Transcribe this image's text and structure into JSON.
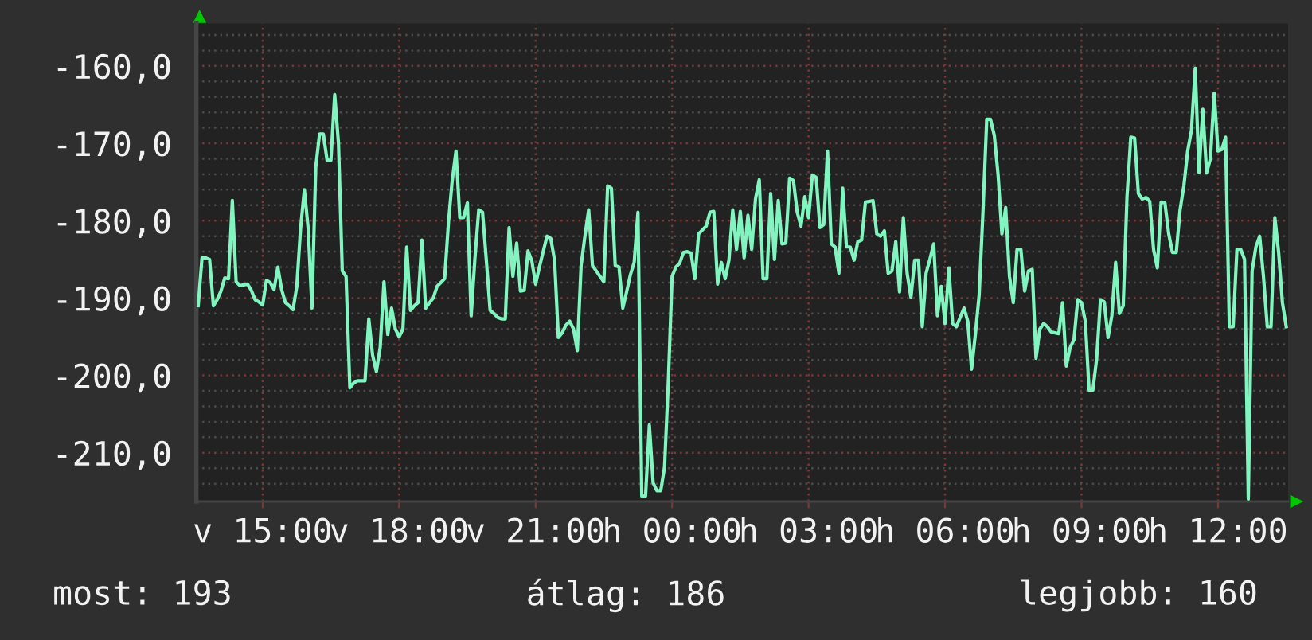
{
  "chart_data": {
    "type": "line",
    "categories": [
      null,
      null,
      null,
      null,
      null,
      null,
      null,
      null,
      null,
      null,
      null,
      null,
      null,
      null,
      null,
      null,
      null,
      "v 15:00",
      null,
      null,
      null,
      null,
      null,
      null,
      null,
      null,
      null,
      null,
      null,
      null,
      null,
      null,
      null,
      null,
      null,
      null,
      null,
      null,
      null,
      null,
      null,
      null,
      null,
      null,
      null,
      null,
      null,
      null,
      null,
      null,
      null,
      null,
      null,
      "v 18:00",
      null,
      null,
      null,
      null,
      null,
      null,
      null,
      null,
      null,
      null,
      null,
      null,
      null,
      null,
      null,
      null,
      null,
      null,
      null,
      null,
      null,
      null,
      null,
      null,
      null,
      null,
      null,
      null,
      null,
      null,
      null,
      null,
      null,
      null,
      null,
      "v 21:00",
      null,
      null,
      null,
      null,
      null,
      null,
      null,
      null,
      null,
      null,
      null,
      null,
      null,
      null,
      null,
      null,
      null,
      null,
      null,
      null,
      null,
      null,
      null,
      null,
      null,
      null,
      null,
      null,
      null,
      null,
      null,
      null,
      null,
      null,
      null,
      "h 00:00",
      null,
      null,
      null,
      null,
      null,
      null,
      null,
      null,
      null,
      null,
      null,
      null,
      null,
      null,
      null,
      null,
      null,
      null,
      null,
      null,
      null,
      null,
      null,
      null,
      null,
      null,
      null,
      null,
      null,
      null,
      null,
      null,
      null,
      null,
      null,
      "h 03:00",
      null,
      null,
      null,
      null,
      null,
      null,
      null,
      null,
      null,
      null,
      null,
      null,
      null,
      null,
      null,
      null,
      null,
      null,
      null,
      null,
      null,
      null,
      null,
      null,
      null,
      null,
      null,
      null,
      null,
      null,
      null,
      null,
      null,
      null,
      null,
      "h 06:00",
      null,
      null,
      null,
      null,
      null,
      null,
      null,
      null,
      null,
      null,
      null,
      null,
      null,
      null,
      null,
      null,
      null,
      null,
      null,
      null,
      null,
      null,
      null,
      null,
      null,
      null,
      null,
      null,
      null,
      null,
      null,
      null,
      null,
      null,
      null,
      "h 09:00",
      null,
      null,
      null,
      null,
      null,
      null,
      null,
      null,
      null,
      null,
      null,
      null,
      null,
      null,
      null,
      null,
      null,
      null,
      null,
      null,
      null,
      null,
      null,
      null,
      null,
      null,
      null,
      null,
      null,
      null,
      null,
      null,
      null,
      null,
      null,
      "h 12:00",
      null,
      null,
      null,
      null,
      null,
      null,
      null,
      null,
      null,
      null,
      null,
      null,
      null,
      null,
      null,
      null,
      null,
      null
    ],
    "series": [
      {
        "color": "#80f5c0",
        "values": [
          -191.0,
          -184.8,
          -184.8,
          -185.0,
          -191.0,
          -190.2,
          -189.1,
          -187.4,
          -187.5,
          -177.4,
          -187.9,
          -188.4,
          -188.3,
          -188.2,
          -189.0,
          -190.2,
          -190.5,
          -190.9,
          -187.7,
          -188.0,
          -188.9,
          -186.0,
          -188.9,
          -190.6,
          -191.0,
          -191.5,
          -188.5,
          -181.0,
          -176.0,
          -181.0,
          -191.3,
          -173.1,
          -168.8,
          -168.8,
          -172.2,
          -172.2,
          -163.7,
          -170.0,
          -186.5,
          -187.2,
          -201.6,
          -201.0,
          -200.7,
          -200.7,
          -200.7,
          -192.7,
          -197.4,
          -199.5,
          -196.4,
          -187.9,
          -194.7,
          -191.3,
          -194.0,
          -195.0,
          -194.0,
          -183.4,
          -191.6,
          -191.0,
          -190.6,
          -182.5,
          -191.3,
          -190.6,
          -190.0,
          -188.5,
          -188.0,
          -187.5,
          -180.3,
          -174.8,
          -171.0,
          -179.6,
          -179.6,
          -177.7,
          -192.3,
          -184.8,
          -178.6,
          -178.9,
          -185.1,
          -191.6,
          -192.0,
          -192.5,
          -192.7,
          -192.7,
          -180.9,
          -187.2,
          -182.9,
          -189.1,
          -189.0,
          -183.9,
          -185.2,
          -188.2,
          -186.0,
          -184.0,
          -182.0,
          -182.3,
          -185.1,
          -195.1,
          -194.5,
          -193.5,
          -193.0,
          -194.0,
          -196.8,
          -185.8,
          -182.0,
          -178.6,
          -185.8,
          -186.5,
          -187.2,
          -187.9,
          -175.5,
          -175.8,
          -185.8,
          -186.0,
          -191.3,
          -189.2,
          -187.0,
          -185.4,
          -178.9,
          -215.6,
          -215.6,
          -206.4,
          -213.9,
          -214.9,
          -214.9,
          -211.9,
          -200.9,
          -187.2,
          -186.0,
          -185.5,
          -184.1,
          -184.0,
          -184.2,
          -187.5,
          -181.7,
          -181.2,
          -180.7,
          -178.9,
          -178.8,
          -188.2,
          -185.4,
          -187.5,
          -185.1,
          -178.6,
          -183.7,
          -178.8,
          -184.8,
          -179.3,
          -183.7,
          -177.2,
          -174.7,
          -187.5,
          -187.5,
          -176.5,
          -185.0,
          -177.4,
          -183.0,
          -182.9,
          -174.5,
          -174.8,
          -178.9,
          -180.7,
          -176.9,
          -179.6,
          -174.1,
          -174.4,
          -180.9,
          -180.5,
          -171.0,
          -183.0,
          -183.4,
          -186.8,
          -175.8,
          -183.4,
          -183.4,
          -185.1,
          -182.7,
          -182.5,
          -177.6,
          -177.5,
          -177.4,
          -181.7,
          -182.0,
          -181.3,
          -186.8,
          -186.5,
          -182.7,
          -189.2,
          -179.6,
          -186.8,
          -189.9,
          -185.1,
          -185.1,
          -193.7,
          -186.8,
          -185.0,
          -183.0,
          -192.3,
          -188.5,
          -193.3,
          -186.1,
          -193.3,
          -193.7,
          -192.5,
          -191.3,
          -193.0,
          -199.2,
          -194.7,
          -189.6,
          -178.9,
          -166.9,
          -166.9,
          -169.0,
          -174.1,
          -181.7,
          -178.3,
          -187.2,
          -190.6,
          -183.7,
          -183.7,
          -189.1,
          -186.5,
          -186.3,
          -197.8,
          -194.0,
          -193.3,
          -193.7,
          -194.4,
          -194.5,
          -194.6,
          -190.6,
          -198.8,
          -196.4,
          -195.4,
          -190.2,
          -190.6,
          -193.0,
          -201.9,
          -201.9,
          -197.8,
          -190.2,
          -190.5,
          -195.1,
          -192.3,
          -185.4,
          -192.0,
          -191.0,
          -176.9,
          -169.2,
          -169.3,
          -176.5,
          -177.2,
          -177.0,
          -177.5,
          -183.7,
          -186.1,
          -177.6,
          -177.7,
          -181.7,
          -184.1,
          -184.1,
          -178.6,
          -175.5,
          -171.0,
          -168.3,
          -160.3,
          -173.8,
          -165.6,
          -173.8,
          -172.0,
          -163.5,
          -171.0,
          -170.8,
          -169.2,
          -193.7,
          -193.7,
          -183.7,
          -183.7,
          -185.0,
          -216.0,
          -186.5,
          -183.4,
          -182.0,
          -187.2,
          -193.7,
          -193.7,
          -179.6,
          -184.1,
          -190.6,
          -193.7
        ]
      }
    ],
    "ylim": [
      -216.3,
      -154.5
    ],
    "yticks": [
      {
        "value": -214,
        "label": null
      },
      {
        "value": -212,
        "label": null
      },
      {
        "value": -210,
        "label": "-210,0"
      },
      {
        "value": -208,
        "label": null
      },
      {
        "value": -206,
        "label": null
      },
      {
        "value": -204,
        "label": null
      },
      {
        "value": -202,
        "label": null
      },
      {
        "value": -200,
        "label": "-200,0"
      },
      {
        "value": -198,
        "label": null
      },
      {
        "value": -196,
        "label": null
      },
      {
        "value": -194,
        "label": null
      },
      {
        "value": -192,
        "label": null
      },
      {
        "value": -190,
        "label": "-190,0"
      },
      {
        "value": -188,
        "label": null
      },
      {
        "value": -186,
        "label": null
      },
      {
        "value": -184,
        "label": null
      },
      {
        "value": -182,
        "label": null
      },
      {
        "value": -180,
        "label": "-180,0"
      },
      {
        "value": -178,
        "label": null
      },
      {
        "value": -176,
        "label": null
      },
      {
        "value": -174,
        "label": null
      },
      {
        "value": -172,
        "label": null
      },
      {
        "value": -170,
        "label": "-170,0"
      },
      {
        "value": -168,
        "label": null
      },
      {
        "value": -166,
        "label": null
      },
      {
        "value": -164,
        "label": null
      },
      {
        "value": -162,
        "label": null
      },
      {
        "value": -160,
        "label": "-160,0"
      },
      {
        "value": -158,
        "label": null
      },
      {
        "value": -156,
        "label": null
      }
    ],
    "grid": true,
    "annotations": [
      "most: 193",
      "átlag: 186",
      "legjobb: 160"
    ]
  }
}
